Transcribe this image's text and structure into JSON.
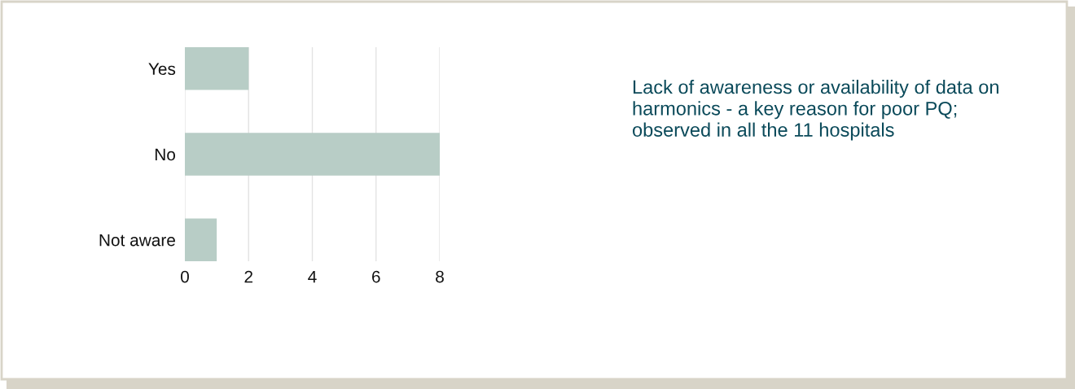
{
  "chart_data": {
    "type": "bar",
    "orientation": "horizontal",
    "categories": [
      "Yes",
      "No",
      "Not aware"
    ],
    "values": [
      2,
      8,
      1
    ],
    "color": "#b8cdc6",
    "xlim": [
      0,
      8
    ],
    "xticks": [
      0,
      2,
      4,
      6,
      8
    ],
    "grid": "x",
    "annotations": [
      "Lack of awareness or availability of data on harmonics - a key reason for poor PQ; observed in all the 11 hospitals"
    ]
  }
}
